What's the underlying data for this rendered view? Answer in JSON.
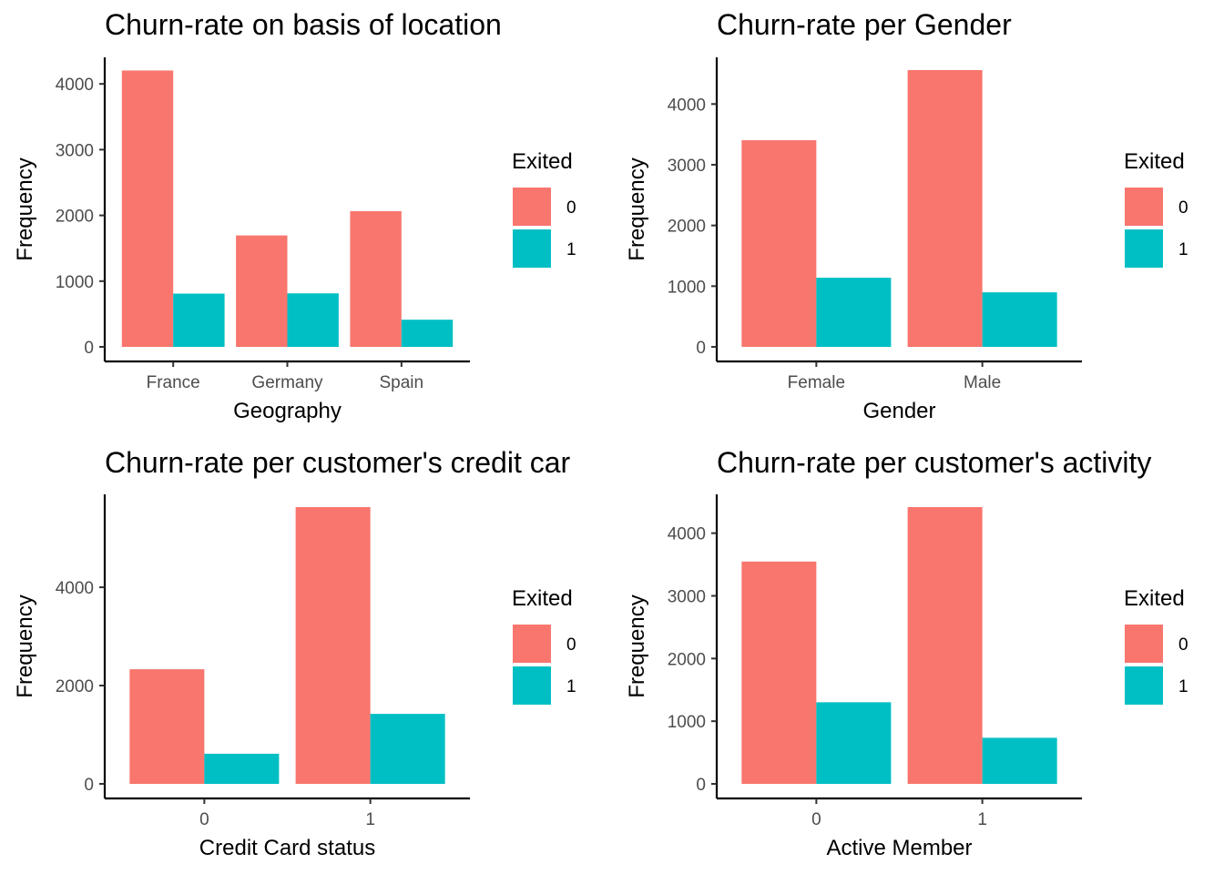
{
  "legend": {
    "title": "Exited",
    "items": [
      {
        "label": "0",
        "color": "#F8766D"
      },
      {
        "label": "1",
        "color": "#00BFC4"
      }
    ]
  },
  "chart_data": [
    {
      "type": "bar",
      "title": "Churn-rate on basis of location",
      "xlabel": "Geography",
      "ylabel": "Frequency",
      "categories": [
        "France",
        "Germany",
        "Spain"
      ],
      "series": [
        {
          "name": "0",
          "values": [
            4204,
            1695,
            2064
          ]
        },
        {
          "name": "1",
          "values": [
            810,
            814,
            413
          ]
        }
      ],
      "ylim": [
        0,
        4210
      ],
      "yticks": [
        0,
        1000,
        2000,
        3000,
        4000
      ],
      "legend_position": "right"
    },
    {
      "type": "bar",
      "title": "Churn-rate per Gender",
      "xlabel": "Gender",
      "ylabel": "Frequency",
      "categories": [
        "Female",
        "Male"
      ],
      "series": [
        {
          "name": "0",
          "values": [
            3404,
            4559
          ]
        },
        {
          "name": "1",
          "values": [
            1139,
            898
          ]
        }
      ],
      "ylim": [
        0,
        4559
      ],
      "yticks": [
        0,
        1000,
        2000,
        3000,
        4000
      ],
      "legend_position": "right"
    },
    {
      "type": "bar",
      "title": "Churn-rate per customer's credit car",
      "xlabel": "Credit Card status",
      "ylabel": "Frequency",
      "categories": [
        "0",
        "1"
      ],
      "series": [
        {
          "name": "0",
          "values": [
            2332,
            5631
          ]
        },
        {
          "name": "1",
          "values": [
            613,
            1424
          ]
        }
      ],
      "ylim": [
        0,
        5631
      ],
      "yticks": [
        0,
        2000,
        4000
      ],
      "legend_position": "right"
    },
    {
      "type": "bar",
      "title": "Churn-rate per customer's activity",
      "xlabel": "Active Member",
      "ylabel": "Frequency",
      "categories": [
        "0",
        "1"
      ],
      "series": [
        {
          "name": "0",
          "values": [
            3547,
            4416
          ]
        },
        {
          "name": "1",
          "values": [
            1302,
            735
          ]
        }
      ],
      "ylim": [
        0,
        4416
      ],
      "yticks": [
        0,
        1000,
        2000,
        3000,
        4000
      ],
      "legend_position": "right"
    }
  ]
}
